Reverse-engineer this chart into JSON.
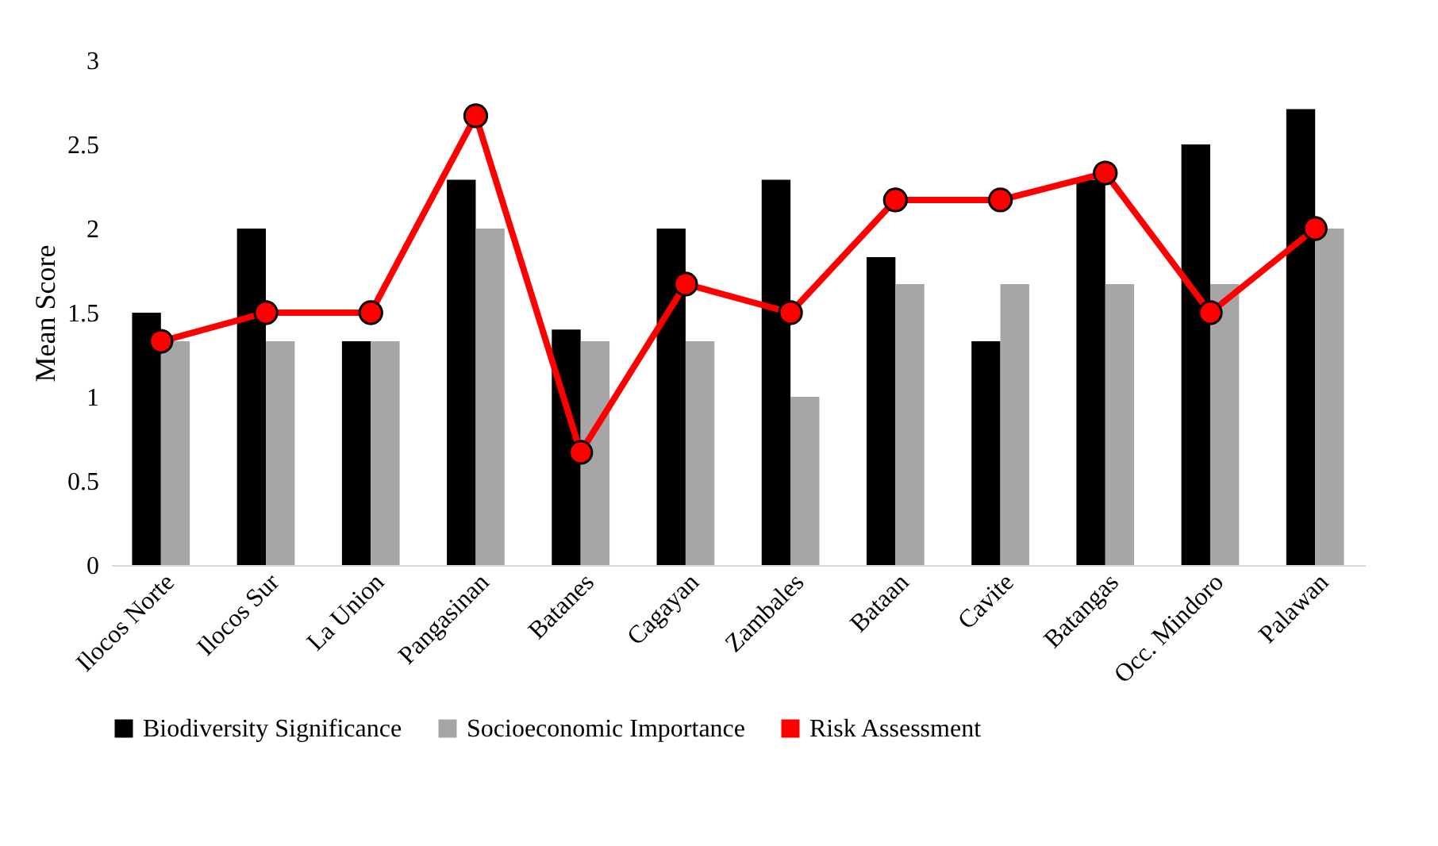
{
  "chart_data": {
    "type": "bar",
    "ylabel": "Mean Score",
    "categories": [
      "Ilocos Norte",
      "Ilocos Sur",
      "La Union",
      "Pangasinan",
      "Batanes",
      "Cagayan",
      "Zambales",
      "Bataan",
      "Cavite",
      "Batangas",
      "Occ. Mindoro",
      "Palawan"
    ],
    "series": [
      {
        "name": "Biodiversity Significance",
        "color": "#000000",
        "values": [
          1.5,
          2.0,
          1.33,
          2.29,
          1.4,
          2.0,
          2.29,
          1.83,
          1.33,
          2.29,
          2.5,
          2.71
        ]
      },
      {
        "name": "Socioeconomic Importance",
        "color": "#a6a6a6",
        "values": [
          1.33,
          1.33,
          1.33,
          2.0,
          1.33,
          1.33,
          1.0,
          1.67,
          1.67,
          1.67,
          1.67,
          2.0
        ]
      },
      {
        "name": "Risk Assessment",
        "type": "line",
        "color": "#ff0000",
        "marker": "circle",
        "values": [
          1.33,
          1.5,
          1.5,
          2.67,
          0.67,
          1.67,
          1.5,
          2.17,
          2.17,
          2.33,
          1.5,
          2.0
        ]
      }
    ],
    "ylim": [
      0,
      3
    ],
    "yticks": [
      0,
      0.5,
      1,
      1.5,
      2,
      2.5,
      3
    ],
    "grid": false,
    "legend": "bottom"
  }
}
